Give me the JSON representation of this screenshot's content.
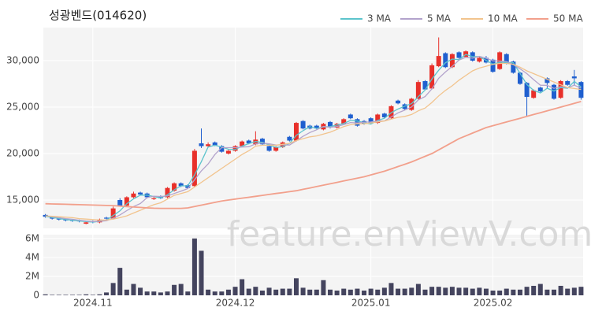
{
  "watermark": "feature.enViewV.com",
  "chart_data": [
    {
      "type": "candlestick",
      "title": "성광벤드(014620)",
      "up_color": "#e8302a",
      "down_color": "#1f5fcf",
      "xlim": [
        -0.3,
        79.3
      ],
      "ylim": [
        11950,
        33560
      ],
      "yticks": [
        {
          "value": 15000,
          "label": "15,000"
        },
        {
          "value": 20000,
          "label": "20,000"
        },
        {
          "value": 25000,
          "label": "25,000"
        },
        {
          "value": 30000,
          "label": "30,000"
        }
      ],
      "grid": true,
      "open": [
        13400,
        13200,
        13000,
        12900,
        12850,
        12800,
        12450,
        12700,
        12600,
        13100,
        13000,
        15000,
        14400,
        15300,
        15800,
        15700,
        15100,
        15400,
        15300,
        16000,
        16800,
        16600,
        16500,
        21100,
        20800,
        21200,
        20800,
        20000,
        20300,
        20800,
        21400,
        21000,
        21600,
        20800,
        20300,
        20700,
        21800,
        21400,
        23500,
        23000,
        23000,
        22600,
        23400,
        22800,
        23200,
        24200,
        23700,
        23500,
        23800,
        23300,
        24300,
        23800,
        25700,
        25300,
        24700,
        25900,
        27800,
        27000,
        29400,
        30800,
        29300,
        30900,
        30400,
        30900,
        29900,
        30300,
        30100,
        29100,
        30700,
        29900,
        28700,
        27600,
        26000,
        27100,
        28100,
        27400,
        26000,
        27800,
        28300,
        27700
      ],
      "high": [
        13500,
        13300,
        13100,
        13000,
        12950,
        12900,
        12700,
        12800,
        13000,
        13200,
        14300,
        15200,
        15400,
        15900,
        15900,
        15800,
        15400,
        15500,
        16400,
        16900,
        16900,
        16700,
        20500,
        22700,
        21200,
        21300,
        20900,
        20400,
        20900,
        21400,
        21500,
        22400,
        21700,
        20900,
        20800,
        21300,
        21900,
        23400,
        23600,
        23100,
        23100,
        23300,
        23500,
        23300,
        23800,
        24300,
        23800,
        23600,
        23900,
        24300,
        24400,
        25200,
        25800,
        25400,
        26000,
        27900,
        27900,
        29700,
        32500,
        30900,
        30800,
        31000,
        31100,
        31000,
        30500,
        30500,
        30200,
        31000,
        30800,
        30000,
        28800,
        27700,
        26900,
        27200,
        28200,
        27500,
        27900,
        27900,
        29000,
        27800
      ],
      "low": [
        13100,
        12900,
        12800,
        12700,
        12650,
        12600,
        12400,
        12500,
        12500,
        12900,
        12900,
        14300,
        14300,
        15200,
        15500,
        15200,
        15000,
        15100,
        15200,
        15900,
        16400,
        16200,
        16400,
        20600,
        20700,
        20800,
        20100,
        19900,
        20200,
        20700,
        21000,
        20900,
        20900,
        20200,
        20200,
        20600,
        21300,
        21300,
        22600,
        22600,
        22600,
        22500,
        22700,
        22700,
        23100,
        23700,
        22900,
        23100,
        23200,
        23200,
        23800,
        23700,
        25300,
        24700,
        24600,
        25800,
        26800,
        26900,
        29300,
        29200,
        29200,
        30200,
        30300,
        29900,
        29800,
        29700,
        28700,
        29000,
        29600,
        28600,
        27400,
        24000,
        25900,
        26600,
        27000,
        25800,
        25900,
        27300,
        27300,
        25800
      ],
      "close": [
        13200,
        13000,
        12900,
        12800,
        12750,
        12700,
        12600,
        12600,
        12900,
        13000,
        14100,
        14400,
        15300,
        15700,
        15600,
        15300,
        15200,
        15200,
        16300,
        16800,
        16500,
        16300,
        20300,
        20800,
        21000,
        20900,
        20200,
        20300,
        20800,
        21300,
        21100,
        21500,
        21000,
        20300,
        20700,
        21200,
        21400,
        23300,
        22700,
        22700,
        22700,
        23200,
        22800,
        23200,
        23700,
        23800,
        23000,
        23200,
        23300,
        24200,
        23900,
        25100,
        25400,
        24800,
        25900,
        27700,
        26900,
        29500,
        30500,
        29300,
        30700,
        30300,
        31000,
        30000,
        30300,
        29800,
        28800,
        30900,
        29700,
        28700,
        27500,
        26100,
        26800,
        26700,
        27600,
        25900,
        27800,
        27400,
        28100,
        26000
      ],
      "series": [
        {
          "name": "3 MA",
          "color": "#5cc4cc",
          "values": [
            13250,
            13130,
            13030,
            12900,
            12820,
            12750,
            12680,
            12630,
            12700,
            12830,
            13330,
            13830,
            14600,
            15130,
            15530,
            15530,
            15370,
            15230,
            15570,
            16100,
            16530,
            16530,
            17700,
            19130,
            20700,
            20900,
            20700,
            20470,
            20430,
            20800,
            21070,
            21300,
            21200,
            20930,
            20670,
            20730,
            21100,
            21970,
            22470,
            22900,
            22700,
            22870,
            22900,
            23070,
            23230,
            23570,
            23500,
            23330,
            23170,
            23570,
            23800,
            24400,
            24800,
            25100,
            25370,
            26130,
            26830,
            28030,
            28970,
            29770,
            30170,
            30100,
            30670,
            30430,
            30430,
            30030,
            29630,
            29830,
            29800,
            29770,
            28630,
            27430,
            26800,
            26530,
            27030,
            26730,
            27100,
            27030,
            27770,
            27170
          ]
        },
        {
          "name": "5 MA",
          "color": "#b3a3cc",
          "values": [
            13300,
            13200,
            13100,
            13000,
            12930,
            12830,
            12750,
            12690,
            12710,
            12760,
            13040,
            13400,
            13860,
            14300,
            14620,
            15260,
            15420,
            15380,
            15440,
            15700,
            15960,
            16230,
            17180,
            18140,
            18880,
            19900,
            20640,
            20640,
            20640,
            20700,
            20740,
            21040,
            21140,
            21040,
            20920,
            20940,
            20920,
            21380,
            21860,
            22260,
            22560,
            22920,
            22820,
            22920,
            23120,
            23340,
            23300,
            23380,
            23400,
            23500,
            23520,
            23940,
            24380,
            24680,
            25020,
            25780,
            26140,
            26960,
            28100,
            28780,
            29380,
            30060,
            30360,
            30260,
            30460,
            30260,
            29980,
            29960,
            29900,
            29580,
            29120,
            28600,
            27960,
            27360,
            27340,
            27020,
            27200,
            27080,
            27360,
            27040
          ]
        },
        {
          "name": "10 MA",
          "color": "#f2c48e",
          "values": [
            13300,
            13250,
            13200,
            13150,
            13100,
            13000,
            12950,
            12900,
            12850,
            12850,
            12950,
            13100,
            13300,
            13600,
            13900,
            14200,
            14500,
            14700,
            15100,
            15500,
            15700,
            15900,
            16400,
            16900,
            17400,
            17900,
            18400,
            18900,
            19400,
            19900,
            20300,
            20800,
            20900,
            20900,
            20900,
            21000,
            21100,
            21400,
            21600,
            21800,
            21900,
            22100,
            22300,
            22600,
            22900,
            23100,
            23200,
            23200,
            23300,
            23400,
            23500,
            23700,
            23900,
            24000,
            24200,
            24600,
            24900,
            25500,
            26200,
            26800,
            27300,
            27900,
            28400,
            28900,
            29200,
            29400,
            29600,
            29700,
            29700,
            29600,
            29300,
            28900,
            28600,
            28300,
            28000,
            27700,
            27400,
            27100,
            27000,
            26900
          ]
        },
        {
          "name": "50 MA",
          "color": "#f2a08c",
          "values": [
            14600,
            14580,
            14560,
            14540,
            14520,
            14500,
            14480,
            14460,
            14440,
            14420,
            14400,
            14350,
            14300,
            14250,
            14200,
            14150,
            14120,
            14100,
            14100,
            14100,
            14100,
            14150,
            14300,
            14450,
            14600,
            14750,
            14900,
            15000,
            15100,
            15200,
            15300,
            15400,
            15500,
            15600,
            15700,
            15800,
            15900,
            16000,
            16150,
            16300,
            16450,
            16600,
            16750,
            16900,
            17050,
            17200,
            17350,
            17500,
            17700,
            17900,
            18100,
            18350,
            18600,
            18850,
            19100,
            19400,
            19700,
            20000,
            20400,
            20800,
            21200,
            21600,
            21900,
            22200,
            22500,
            22800,
            23000,
            23200,
            23400,
            23600,
            23800,
            24000,
            24200,
            24400,
            24600,
            24800,
            25000,
            25200,
            25400,
            25600
          ]
        }
      ]
    },
    {
      "type": "bar",
      "color": "#44445e",
      "xlim": [
        -0.3,
        79.3
      ],
      "ylim": [
        0,
        6400000
      ],
      "yticks": [
        0,
        {
          "value": 2000000,
          "label": "2M"
        },
        {
          "value": 4000000,
          "label": "4M"
        },
        {
          "value": 6000000,
          "label": "6M"
        }
      ],
      "xticks": [
        {
          "value": 7,
          "label": "2024.11"
        },
        {
          "value": 28,
          "label": "2024.12"
        },
        {
          "value": 48,
          "label": "2025.01"
        },
        {
          "value": 66,
          "label": "2025.02"
        }
      ],
      "values": [
        100000,
        50000,
        50000,
        50000,
        50000,
        50000,
        100000,
        50000,
        100000,
        300000,
        1300000,
        2900000,
        600000,
        1200000,
        800000,
        400000,
        400000,
        300000,
        400000,
        1100000,
        1200000,
        400000,
        6000000,
        4700000,
        600000,
        400000,
        400000,
        600000,
        900000,
        1700000,
        700000,
        900000,
        500000,
        800000,
        600000,
        700000,
        700000,
        1800000,
        800000,
        600000,
        600000,
        1600000,
        600000,
        500000,
        700000,
        600000,
        700000,
        500000,
        700000,
        600000,
        800000,
        1300000,
        700000,
        700000,
        800000,
        1200000,
        600000,
        900000,
        900000,
        800000,
        900000,
        800000,
        800000,
        700000,
        800000,
        700000,
        500000,
        500000,
        700000,
        600000,
        600000,
        900000,
        1000000,
        1200000,
        600000,
        600000,
        1000000,
        700000,
        800000,
        900000
      ]
    }
  ]
}
